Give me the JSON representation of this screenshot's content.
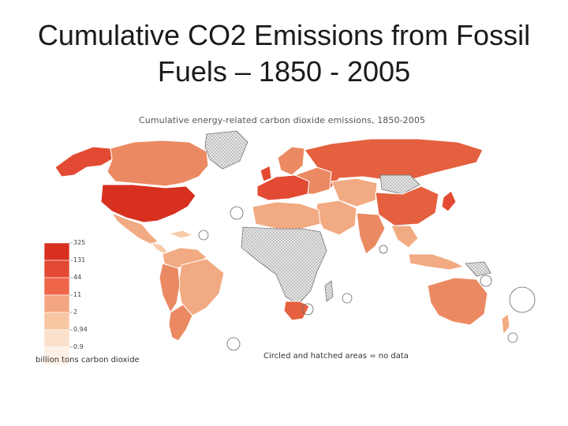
{
  "slide": {
    "title_line1": "Cumulative CO2 Emissions from Fossil",
    "title_line2": "Fuels – 1850 - 2005"
  },
  "map": {
    "title": "Cumulative energy-related carbon dioxide emissions, 1850-2005",
    "nodata_note": "Circled and hatched areas =  no data",
    "legend": {
      "unit": "billion tons carbon dioxide",
      "ticks": [
        "325",
        "131",
        "44",
        "11",
        "2",
        "0.94",
        "0.9"
      ],
      "colors": [
        "#d7301f",
        "#e34a33",
        "#ef6548",
        "#f4a582",
        "#f7c6a3",
        "#fbe1cc",
        "#fdf0e4"
      ]
    },
    "colors": {
      "usa": "#d7301f",
      "russia_china_europe": "#e4603f",
      "medium": "#eb8a62",
      "light": "#f2aa82",
      "pale": "#f7cba8",
      "no_data": "#d9d9d9"
    }
  }
}
